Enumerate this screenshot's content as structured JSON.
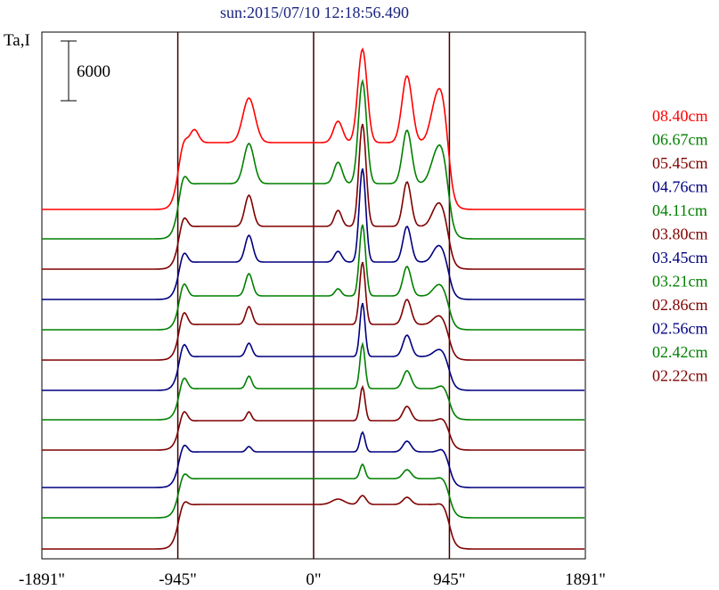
{
  "title": "sun:2015/07/10 12:18:56.490",
  "y_label": "Ta,I",
  "scale_bar": {
    "label": "6000",
    "value": 6000
  },
  "colors": {
    "red": "#ff0000",
    "green": "#008000",
    "maroon": "#800000",
    "navy": "#000080",
    "frame": "#000000",
    "vline": "#400000"
  },
  "chart_data": {
    "type": "line",
    "title": "sun:2015/07/10 12:18:56.490",
    "ylabel": "Ta,I",
    "xlim": [
      -1891,
      1891
    ],
    "x_ticks": [
      {
        "value": -1891,
        "label": "-1891\""
      },
      {
        "value": -945,
        "label": "-945\""
      },
      {
        "value": 0,
        "label": "0\""
      },
      {
        "value": 945,
        "label": "945\""
      },
      {
        "value": 1891,
        "label": "1891\""
      }
    ],
    "vertical_lines": [
      -945,
      0,
      945
    ],
    "series": [
      {
        "name": "08.40cm",
        "color": "#ff0000",
        "base": 235,
        "disk": 75,
        "limb_l": 10,
        "limb_r": 26,
        "peaks": [
          [
            -450,
            50,
            60
          ],
          [
            170,
            24,
            45
          ],
          [
            340,
            105,
            45
          ],
          [
            650,
            75,
            50
          ],
          [
            860,
            50,
            60
          ],
          [
            -830,
            15,
            40
          ]
        ]
      },
      {
        "name": "06.67cm",
        "color": "#008000",
        "base": 268,
        "disk": 62,
        "limb_l": 15,
        "limb_r": 20,
        "peaks": [
          [
            -450,
            45,
            50
          ],
          [
            170,
            24,
            40
          ],
          [
            340,
            115,
            40
          ],
          [
            650,
            60,
            45
          ],
          [
            860,
            35,
            60
          ]
        ]
      },
      {
        "name": "05.45cm",
        "color": "#800000",
        "base": 302,
        "disk": 48,
        "limb_l": 15,
        "limb_r": 12,
        "peaks": [
          [
            -450,
            35,
            40
          ],
          [
            170,
            18,
            35
          ],
          [
            340,
            115,
            35
          ],
          [
            650,
            50,
            40
          ],
          [
            860,
            22,
            55
          ]
        ]
      },
      {
        "name": "04.76cm",
        "color": "#000080",
        "base": 336,
        "disk": 42,
        "limb_l": 15,
        "limb_r": 10,
        "peaks": [
          [
            -450,
            30,
            38
          ],
          [
            170,
            12,
            35
          ],
          [
            340,
            105,
            32
          ],
          [
            650,
            40,
            40
          ],
          [
            860,
            15,
            50
          ]
        ]
      },
      {
        "name": "04.11cm",
        "color": "#008000",
        "base": 370,
        "disk": 38,
        "limb_l": 18,
        "limb_r": 8,
        "peaks": [
          [
            -450,
            25,
            35
          ],
          [
            170,
            8,
            30
          ],
          [
            340,
            80,
            30
          ],
          [
            650,
            33,
            40
          ],
          [
            860,
            10,
            50
          ]
        ]
      },
      {
        "name": "03.80cm",
        "color": "#800000",
        "base": 404,
        "disk": 40,
        "limb_l": 18,
        "limb_r": 6,
        "peaks": [
          [
            -450,
            20,
            32
          ],
          [
            340,
            70,
            28
          ],
          [
            650,
            28,
            40
          ],
          [
            860,
            8,
            50
          ]
        ]
      },
      {
        "name": "03.45cm",
        "color": "#000080",
        "base": 438,
        "disk": 38,
        "limb_l": 18,
        "limb_r": 6,
        "peaks": [
          [
            -450,
            15,
            30
          ],
          [
            340,
            60,
            25
          ],
          [
            650,
            24,
            40
          ],
          [
            860,
            6,
            50
          ]
        ]
      },
      {
        "name": "03.21cm",
        "color": "#008000",
        "base": 471,
        "disk": 35,
        "limb_l": 16,
        "limb_r": 6,
        "peaks": [
          [
            -450,
            14,
            28
          ],
          [
            340,
            50,
            25
          ],
          [
            650,
            20,
            40
          ]
        ]
      },
      {
        "name": "02.86cm",
        "color": "#800000",
        "base": 505,
        "disk": 33,
        "limb_l": 14,
        "limb_r": 5,
        "peaks": [
          [
            -450,
            10,
            25
          ],
          [
            340,
            38,
            25
          ],
          [
            650,
            16,
            40
          ]
        ]
      },
      {
        "name": "02.56cm",
        "color": "#000080",
        "base": 547,
        "disk": 40,
        "limb_l": 12,
        "limb_r": 6,
        "peaks": [
          [
            -450,
            6,
            25
          ],
          [
            340,
            22,
            25
          ],
          [
            650,
            12,
            40
          ]
        ]
      },
      {
        "name": "02.42cm",
        "color": "#008000",
        "base": 581,
        "disk": 44,
        "limb_l": 10,
        "limb_r": 4,
        "peaks": [
          [
            340,
            16,
            25
          ],
          [
            650,
            10,
            40
          ]
        ]
      },
      {
        "name": "02.22cm",
        "color": "#800000",
        "base": 616,
        "disk": 50,
        "limb_l": 8,
        "limb_r": 4,
        "peaks": [
          [
            170,
            6,
            60
          ],
          [
            340,
            10,
            35
          ],
          [
            650,
            8,
            40
          ]
        ]
      }
    ]
  }
}
